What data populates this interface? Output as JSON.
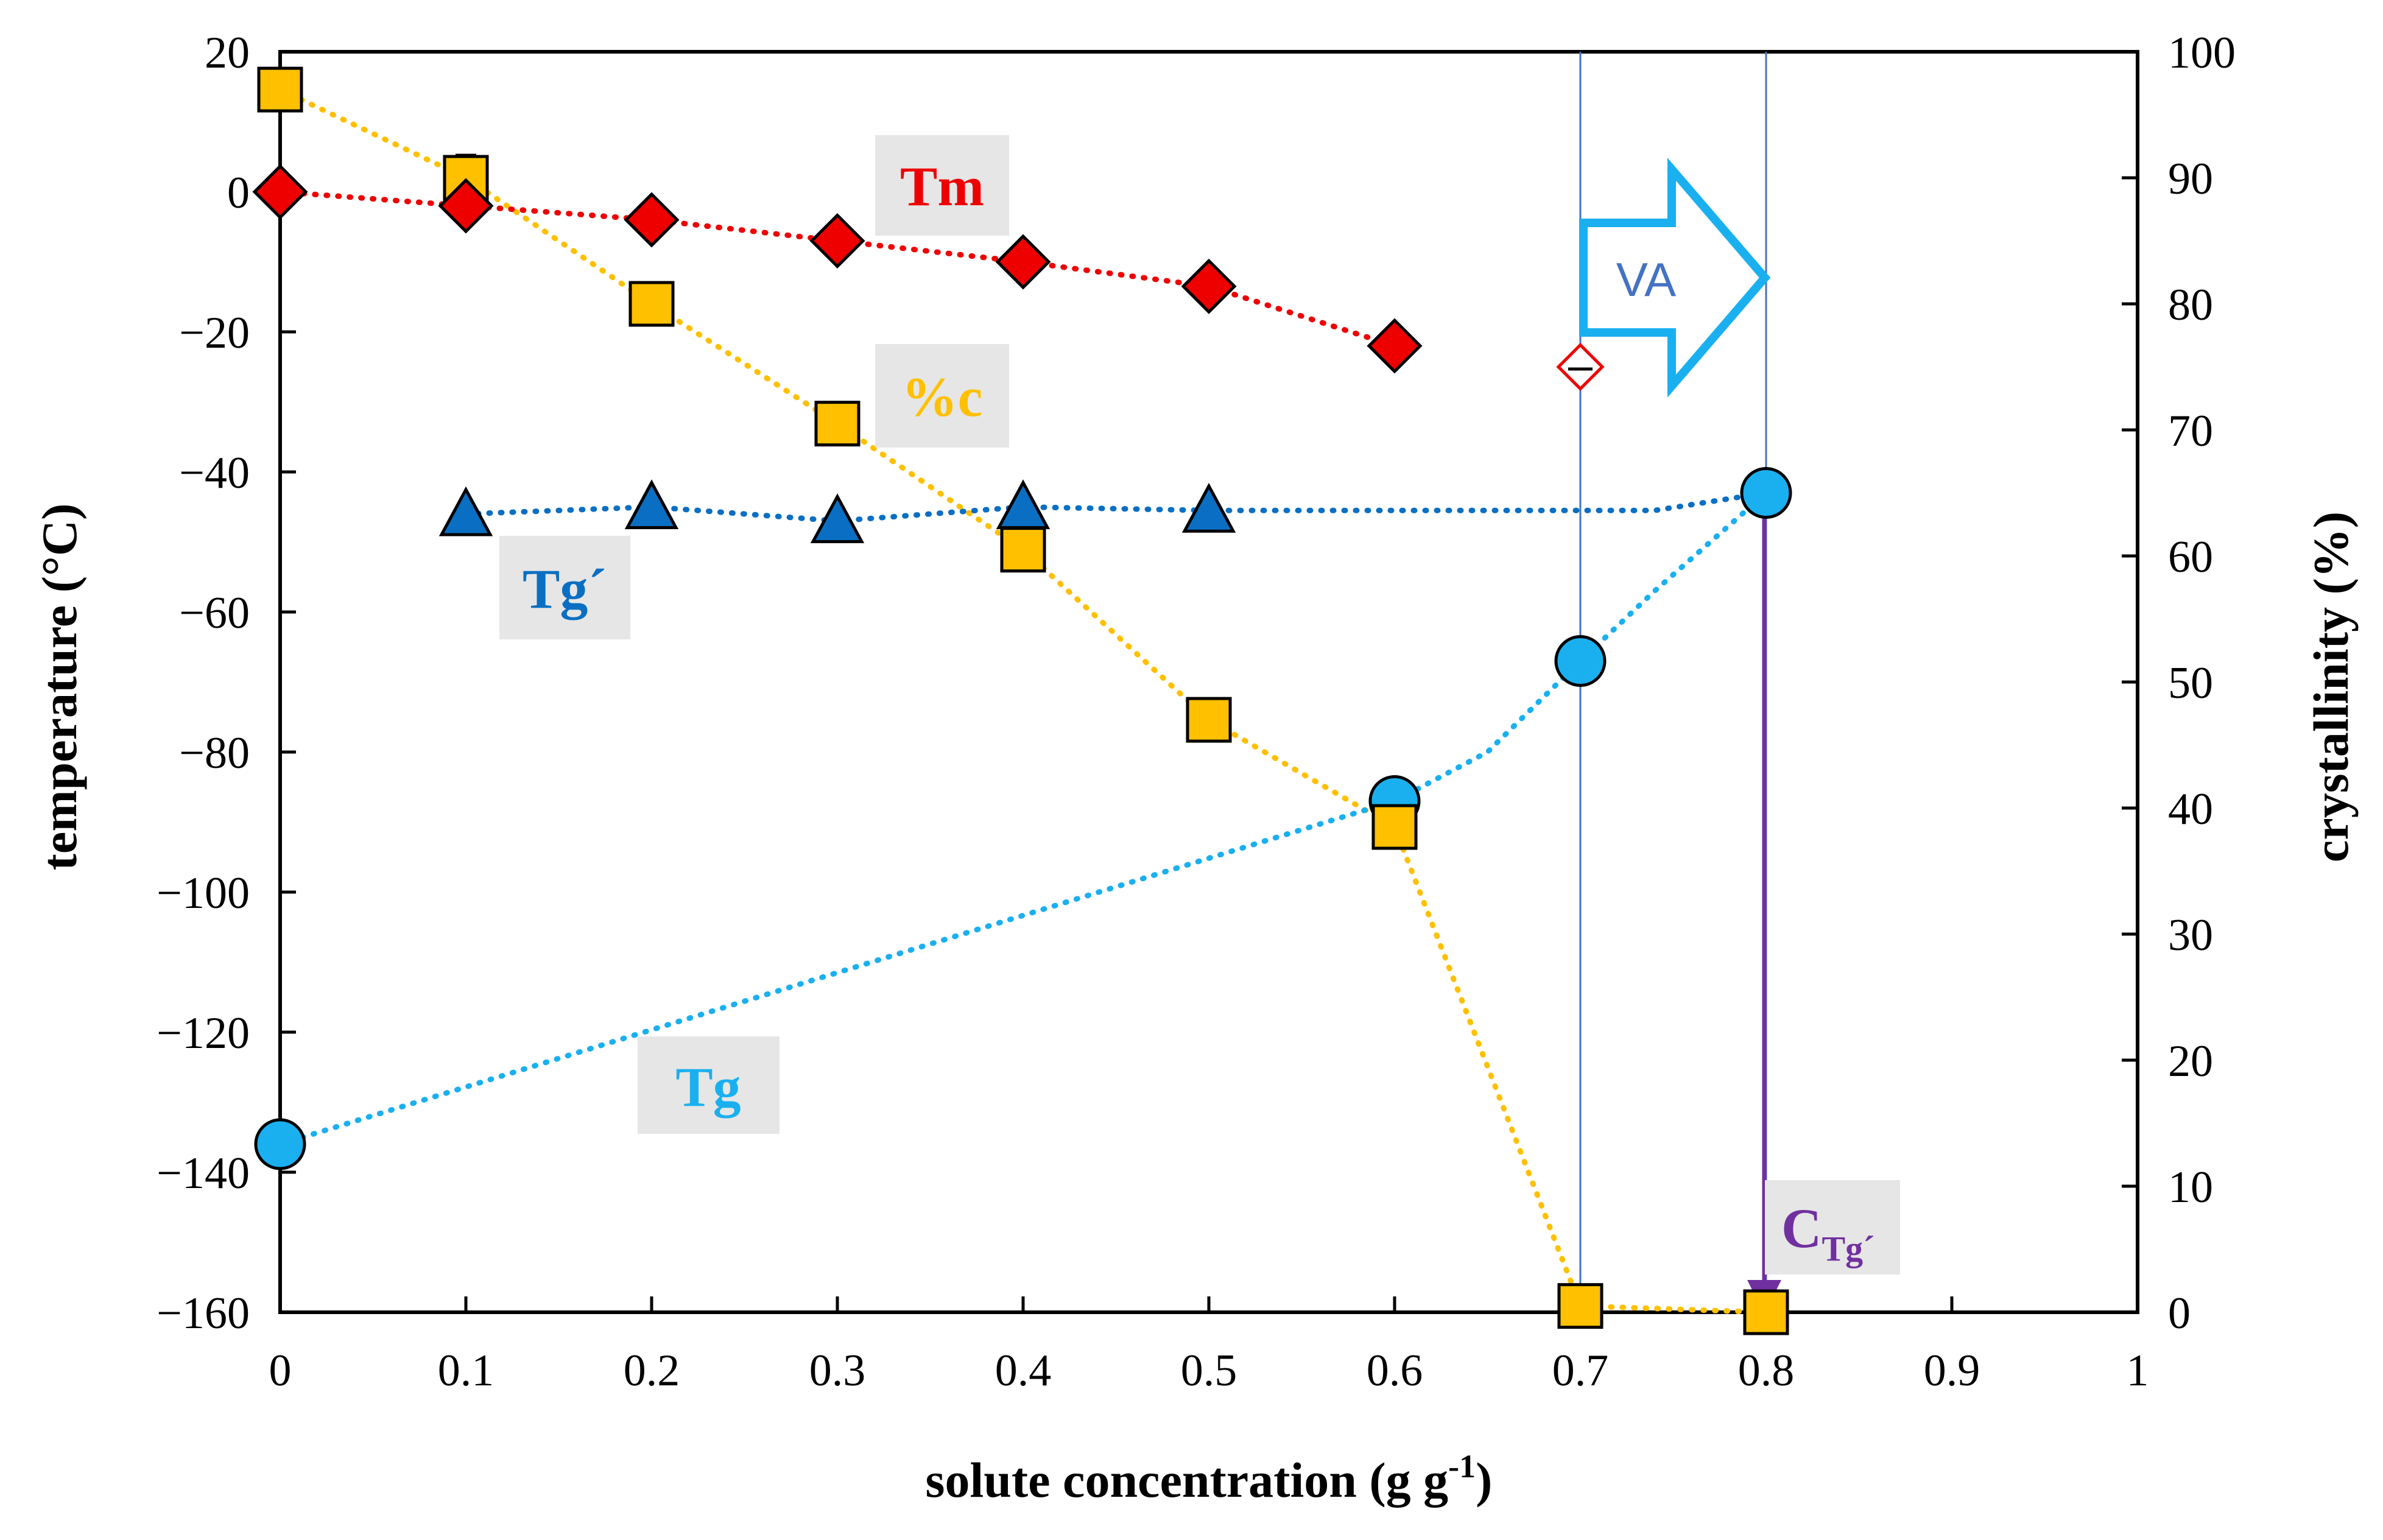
{
  "chart_data": {
    "type": "scatter",
    "title": "",
    "xlabel": "solute concentration (g g",
    "xlabel_superscript": "-1",
    "xlabel_end": ")",
    "ylabel_left": "temperature (°C)",
    "ylabel_right": "crystallinity (%)",
    "xlim": [
      0,
      1
    ],
    "ylim_left": [
      -160,
      20
    ],
    "ylim_right": [
      0,
      100
    ],
    "x_ticks": [
      "0",
      "0.1",
      "0.2",
      "0.3",
      "0.4",
      "0.5",
      "0.6",
      "0.7",
      "0.8",
      "0.9",
      "1"
    ],
    "y_left_ticks": [
      "20",
      "0",
      "−20",
      "−40",
      "−60",
      "−80",
      "−100",
      "−120",
      "−140",
      "−160"
    ],
    "y_right_ticks": [
      "100",
      "90",
      "80",
      "70",
      "60",
      "50",
      "40",
      "30",
      "20",
      "10",
      "0"
    ],
    "series": [
      {
        "name": "Tm",
        "axis": "left",
        "marker": "diamond",
        "color": "#ee0000",
        "x": [
          0,
          0.1,
          0.2,
          0.3,
          0.4,
          0.5,
          0.6
        ],
        "y": [
          0,
          -2,
          -4,
          -7,
          -10,
          -13.5,
          -22
        ]
      },
      {
        "name": "Tm (open)",
        "axis": "left",
        "marker": "diamond-open",
        "color": "#ee0000",
        "x": [
          0.7
        ],
        "y": [
          -25
        ]
      },
      {
        "name": "%c",
        "axis": "right",
        "marker": "square",
        "color": "#ffc000",
        "x": [
          0,
          0.1,
          0.2,
          0.3,
          0.4,
          0.5,
          0.6,
          0.7,
          0.8
        ],
        "y": [
          97,
          90,
          80,
          70.5,
          60.5,
          47,
          38.5,
          0.5,
          0
        ]
      },
      {
        "name": "Tg´",
        "axis": "left",
        "marker": "triangle",
        "color": "#0a6fc2",
        "x": [
          0.1,
          0.2,
          0.3,
          0.4,
          0.5
        ],
        "y": [
          -46,
          -45,
          -47,
          -45,
          -45.5
        ]
      },
      {
        "name": "Tg",
        "axis": "left",
        "marker": "circle",
        "color": "#1ab0f0",
        "x": [
          0,
          0.6,
          0.7,
          0.8
        ],
        "y": [
          -136,
          -87,
          -67,
          -43
        ]
      }
    ],
    "annotations": {
      "tm": "Tm",
      "pc": "%c",
      "tgp": "Tg´",
      "tg": "Tg",
      "ctg_main": "C",
      "ctg_sub": "Tg´",
      "va": "VA"
    },
    "colors": {
      "tm": "#ee0000",
      "pc": "#ffc000",
      "tgp": "#0a6fc2",
      "tg": "#1ab0f0",
      "ctg": "#7030a0",
      "va_arrow": "#1ab0f0",
      "va_text": "#4472c4",
      "guide_line": "#4472c4",
      "label_box": "#e6e6e6"
    }
  }
}
